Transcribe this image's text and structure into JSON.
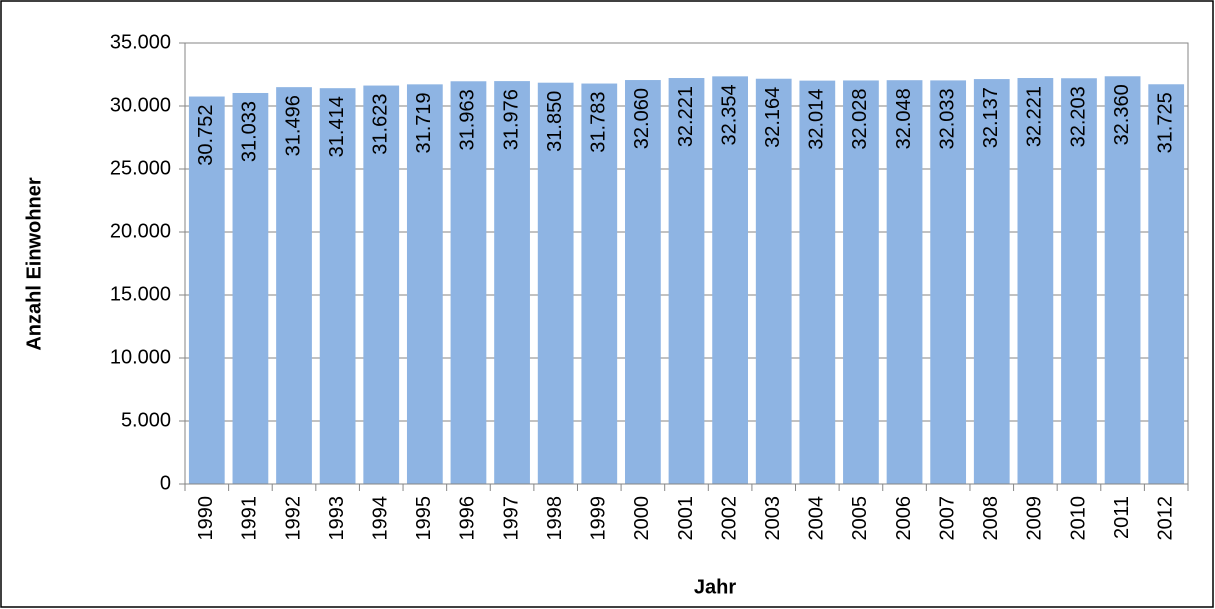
{
  "chart_data": {
    "type": "bar",
    "x_label": "Jahr",
    "y_label": "Anzahl Einwohner",
    "categories": [
      "1990",
      "1991",
      "1992",
      "1993",
      "1994",
      "1995",
      "1996",
      "1997",
      "1998",
      "1999",
      "2000",
      "2001",
      "2002",
      "2003",
      "2004",
      "2005",
      "2006",
      "2007",
      "2008",
      "2009",
      "2010",
      "2011",
      "2012"
    ],
    "values": [
      30752,
      31033,
      31496,
      31414,
      31623,
      31719,
      31963,
      31976,
      31850,
      31783,
      32060,
      32221,
      32354,
      32164,
      32014,
      32028,
      32048,
      32033,
      32137,
      32221,
      32203,
      32360,
      31725
    ],
    "value_labels": [
      "30.752",
      "31.033",
      "31.496",
      "31.414",
      "31.623",
      "31.719",
      "31.963",
      "31.976",
      "31.850",
      "31.783",
      "32.060",
      "32.221",
      "32.354",
      "32.164",
      "32.014",
      "32.028",
      "32.048",
      "32.033",
      "32.137",
      "32.221",
      "32.203",
      "32.360",
      "31.725"
    ],
    "color": "#8EB4E3",
    "ylim": [
      0,
      35000
    ],
    "yticks": [
      0,
      {
        "value": 5000,
        "label": "5.000"
      },
      {
        "value": 10000,
        "label": "10.000"
      },
      {
        "value": 15000,
        "label": "15.000"
      },
      {
        "value": 20000,
        "label": "20.000"
      },
      {
        "value": 25000,
        "label": "25.000"
      },
      {
        "value": 30000,
        "label": "30.000"
      },
      {
        "value": 35000,
        "label": "35.000"
      }
    ],
    "grid": true
  }
}
